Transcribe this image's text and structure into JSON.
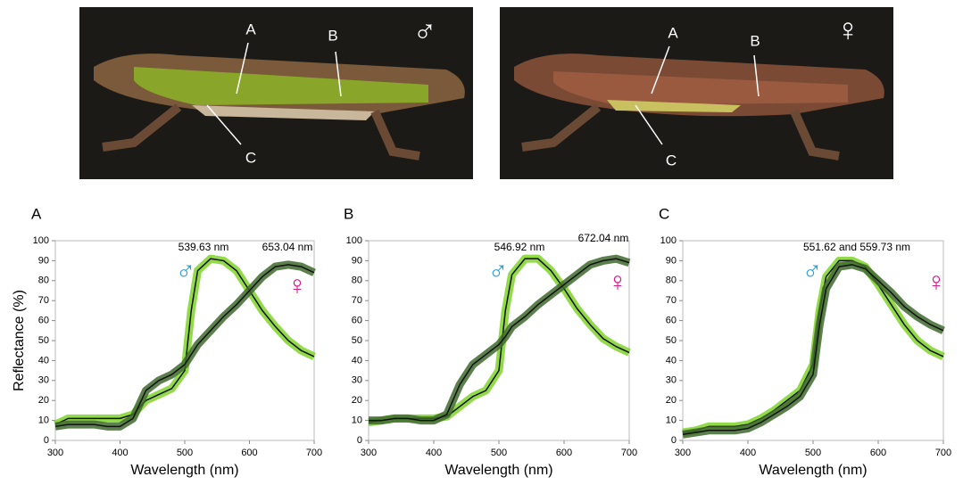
{
  "photos": [
    {
      "labels": [
        "A",
        "B",
        "C"
      ],
      "symbol": "♂"
    },
    {
      "labels": [
        "A",
        "B",
        "C"
      ],
      "symbol": "♀"
    }
  ],
  "chart_data": [
    {
      "type": "line",
      "panel": "A",
      "ylabel": "Reflectance (%)",
      "xlabel": "Wavelength (nm)",
      "annotations": [
        "539.63 nm",
        "653.04 nm"
      ],
      "x": [
        300,
        320,
        340,
        360,
        380,
        400,
        420,
        440,
        460,
        480,
        500,
        510,
        520,
        540,
        560,
        580,
        600,
        620,
        640,
        660,
        680,
        700
      ],
      "xlim": [
        300,
        700
      ],
      "xticks": [
        300,
        400,
        500,
        600,
        700
      ],
      "ylim": [
        0,
        100
      ],
      "yticks": [
        0,
        10,
        20,
        30,
        40,
        50,
        60,
        70,
        80,
        90,
        100
      ],
      "series": [
        {
          "name": "♂",
          "color": "#7fd32a",
          "label_color": "#2b9fd6",
          "values": [
            8,
            11,
            11,
            11,
            11,
            11,
            13,
            20,
            23,
            26,
            35,
            65,
            85,
            91,
            90,
            85,
            75,
            65,
            57,
            50,
            45,
            42
          ]
        },
        {
          "name": "♀",
          "color": "#3f6a2e",
          "label_color": "#d81b84",
          "values": [
            7,
            8,
            8,
            8,
            7,
            7,
            11,
            25,
            30,
            33,
            38,
            43,
            48,
            55,
            62,
            68,
            75,
            82,
            87,
            88,
            87,
            84
          ]
        }
      ]
    },
    {
      "type": "line",
      "panel": "B",
      "xlabel": "Wavelength (nm)",
      "annotations": [
        "546.92 nm",
        "672.04 nm"
      ],
      "x": [
        300,
        320,
        340,
        360,
        380,
        400,
        420,
        440,
        460,
        480,
        500,
        510,
        520,
        540,
        560,
        580,
        600,
        620,
        640,
        660,
        680,
        700
      ],
      "xlim": [
        300,
        700
      ],
      "xticks": [
        300,
        400,
        500,
        600,
        700
      ],
      "ylim": [
        0,
        100
      ],
      "yticks": [
        0,
        10,
        20,
        30,
        40,
        50,
        60,
        70,
        80,
        90,
        100
      ],
      "series": [
        {
          "name": "♂",
          "color": "#7fd32a",
          "label_color": "#2b9fd6",
          "values": [
            9,
            10,
            11,
            11,
            11,
            11,
            12,
            17,
            22,
            25,
            35,
            65,
            83,
            91,
            91,
            85,
            76,
            66,
            58,
            51,
            47,
            44
          ]
        },
        {
          "name": "♀",
          "color": "#3f6a2e",
          "label_color": "#d81b84",
          "values": [
            10,
            10,
            11,
            11,
            10,
            10,
            13,
            28,
            38,
            43,
            48,
            52,
            57,
            62,
            68,
            73,
            78,
            83,
            88,
            90,
            91,
            89
          ]
        }
      ]
    },
    {
      "type": "line",
      "panel": "C",
      "xlabel": "Wavelength (nm)",
      "annotations": [
        "551.62 and 559.73 nm"
      ],
      "x": [
        300,
        320,
        340,
        360,
        380,
        400,
        420,
        440,
        460,
        480,
        500,
        510,
        520,
        540,
        560,
        580,
        600,
        620,
        640,
        660,
        680,
        700
      ],
      "xlim": [
        300,
        700
      ],
      "xticks": [
        300,
        400,
        500,
        600,
        700
      ],
      "ylim": [
        0,
        100
      ],
      "yticks": [
        0,
        10,
        20,
        30,
        40,
        50,
        60,
        70,
        80,
        90,
        100
      ],
      "series": [
        {
          "name": "♂",
          "color": "#7fd32a",
          "label_color": "#2b9fd6",
          "values": [
            4,
            5,
            7,
            7,
            7,
            8,
            11,
            15,
            20,
            25,
            38,
            65,
            82,
            90,
            90,
            87,
            78,
            68,
            58,
            50,
            45,
            42
          ]
        },
        {
          "name": "♀",
          "color": "#3f6a2e",
          "label_color": "#d81b84",
          "values": [
            3,
            4,
            5,
            5,
            5,
            6,
            9,
            13,
            17,
            22,
            33,
            58,
            76,
            87,
            88,
            86,
            80,
            74,
            67,
            62,
            58,
            55
          ]
        }
      ]
    }
  ]
}
